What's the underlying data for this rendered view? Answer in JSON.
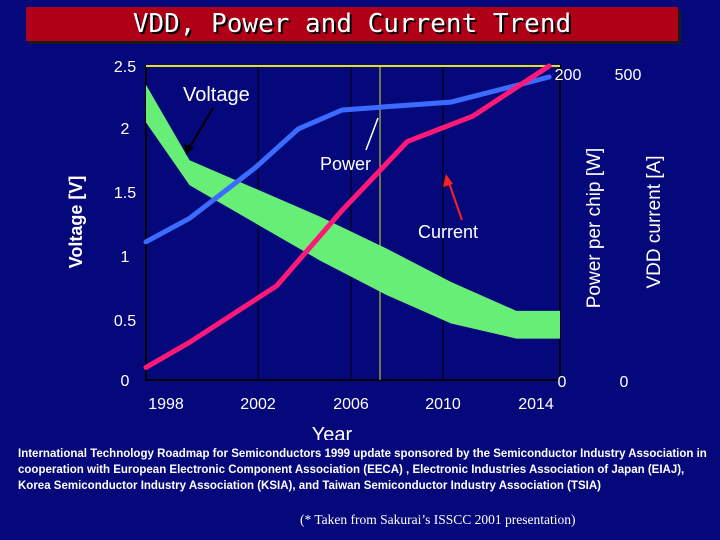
{
  "title": "VDD, Power and Current Trend",
  "footnote": "International Technology Roadmap for Semiconductors 1999 update sponsored by the Semiconductor Industry Association in cooperation with European Electronic Component Association (EECA) , Electronic Industries Association of Japan (EIAJ), Korea Semiconductor Industry Association (KSIA), and Taiwan Semiconductor Industry Association (TSIA)",
  "credit": "(* Taken from Sakurai’s ISSCC 2001 presentation)",
  "colors": {
    "background": "#04087a",
    "title_bar": "#b00018",
    "plot_area": "#04087a",
    "voltage_band": "#66ee77",
    "power": "#3b6cff",
    "current": "#ff1877",
    "text": "#ffffff"
  },
  "chart_data": {
    "type": "line",
    "xlabel": "Year",
    "xlim": [
      1995,
      2014
    ],
    "x_ticks": [
      "1998",
      "2002",
      "2006",
      "2010",
      "2014"
    ],
    "left_axis": {
      "label": "Voltage [V]",
      "ylim": [
        0,
        2.5
      ],
      "ticks": [
        "0",
        "0.5",
        "1",
        "1.5",
        "2",
        "2.5"
      ]
    },
    "right_axis_power": {
      "label": "Power per chip [W]",
      "ylim": [
        0,
        200
      ],
      "ticks": [
        "0",
        "200"
      ]
    },
    "right_axis_current": {
      "label": "VDD current [A]",
      "ylim": [
        0,
        500
      ],
      "ticks": [
        "0",
        "500"
      ]
    },
    "series": [
      {
        "name": "Voltage",
        "axis": "left",
        "kind": "band",
        "x": [
          1995,
          1997,
          2003,
          2006,
          2009,
          2012,
          2014
        ],
        "upper": [
          2.35,
          1.75,
          1.3,
          1.05,
          0.78,
          0.55,
          0.55
        ],
        "lower": [
          2.05,
          1.55,
          0.95,
          0.68,
          0.45,
          0.33,
          0.33
        ]
      },
      {
        "name": "Power",
        "axis": "power",
        "kind": "line",
        "x": [
          1995,
          1997,
          2000,
          2002,
          2004,
          2006,
          2009,
          2013.5
        ],
        "values": [
          88,
          103,
          135,
          160,
          172,
          174,
          177,
          193
        ]
      },
      {
        "name": "Current",
        "axis": "current",
        "kind": "line",
        "x": [
          1995,
          1997,
          2001,
          2004,
          2007,
          2010,
          2013.5
        ],
        "values": [
          20,
          60,
          150,
          270,
          380,
          420,
          500
        ]
      }
    ],
    "annotations": [
      "Voltage",
      "Power",
      "Current"
    ]
  }
}
